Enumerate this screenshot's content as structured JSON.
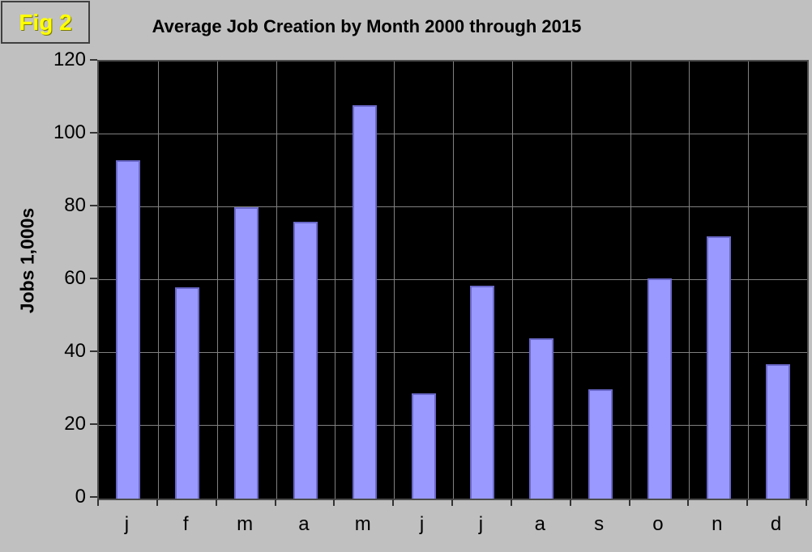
{
  "fig_badge": {
    "label": "Fig 2"
  },
  "chart_data": {
    "type": "bar",
    "title": "Average Job Creation by Month 2000 through 2015",
    "xlabel": "",
    "ylabel": "Jobs 1,000s",
    "categories": [
      "j",
      "f",
      "m",
      "a",
      "m",
      "j",
      "j",
      "a",
      "s",
      "o",
      "n",
      "d"
    ],
    "values": [
      93,
      58,
      80,
      76,
      108,
      29,
      58.5,
      44,
      30,
      60.5,
      72,
      37
    ],
    "ylim": [
      0,
      120
    ],
    "yticks": [
      0,
      20,
      40,
      60,
      80,
      100,
      120
    ],
    "grid": true,
    "legend_position": "none",
    "colors": {
      "page_background": "#c0c0c0",
      "plot_background": "#000000",
      "gridline": "#808080",
      "bar_fill": "#9999ff",
      "bar_border": "#6a68c8",
      "title_text": "#000000",
      "fig_badge_text": "#ffff00"
    }
  }
}
